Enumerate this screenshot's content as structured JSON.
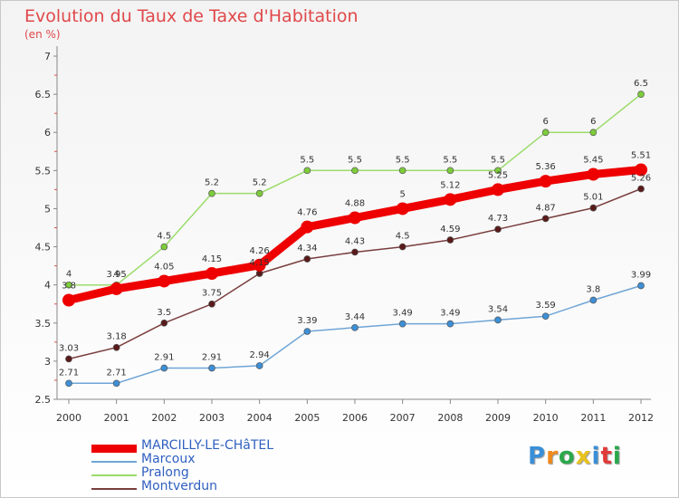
{
  "chart_data": {
    "type": "line",
    "title": "Evolution du Taux de Taxe d'Habitation",
    "subtitle": "(en %)",
    "x": [
      "2000",
      "2001",
      "2002",
      "2003",
      "2004",
      "2005",
      "2006",
      "2007",
      "2008",
      "2009",
      "2010",
      "2011",
      "2012"
    ],
    "ylim": [
      2.5,
      7
    ],
    "yticks": [
      "2.5",
      "3",
      "3.5",
      "4",
      "4.5",
      "5",
      "5.5",
      "6",
      "6.5",
      "7"
    ],
    "grid": false,
    "legend_position": "bottom-left",
    "series": [
      {
        "name": "MARCILLY-LE-CHâTEL",
        "color": "#ee0000",
        "emphasis": true,
        "values": [
          3.8,
          3.95,
          4.05,
          4.15,
          4.26,
          4.76,
          4.88,
          5,
          5.12,
          5.25,
          5.36,
          5.45,
          5.51
        ],
        "labels": [
          "3.8",
          "3.95",
          "4.05",
          "4.15",
          "4.26",
          "4.76",
          "4.88",
          "5",
          "5.12",
          "5.25",
          "5.36",
          "5.45",
          "5.51"
        ]
      },
      {
        "name": "Marcoux",
        "color": "#6fa5d6",
        "point_color": "#3d8fd6",
        "values": [
          2.71,
          2.71,
          2.91,
          2.91,
          2.94,
          3.39,
          3.44,
          3.49,
          3.49,
          3.54,
          3.59,
          3.8,
          3.99
        ],
        "labels": [
          "2.71",
          "2.71",
          "2.91",
          "2.91",
          "2.94",
          "3.39",
          "3.44",
          "3.49",
          "3.49",
          "3.54",
          "3.59",
          "3.8",
          "3.99"
        ]
      },
      {
        "name": "Pralong",
        "color": "#9bdc6a",
        "point_color": "#7dcc3c",
        "values": [
          4,
          4,
          4.5,
          5.2,
          5.2,
          5.5,
          5.5,
          5.5,
          5.5,
          5.5,
          6,
          6,
          6.5
        ],
        "labels": [
          "4",
          "4",
          "4.5",
          "5.2",
          "5.2",
          "5.5",
          "5.5",
          "5.5",
          "5.5",
          "5.5",
          "6",
          "6",
          "6.5"
        ]
      },
      {
        "name": "Montverdun",
        "color": "#7a3e3e",
        "point_color": "#5a1a1a",
        "values": [
          3.03,
          3.18,
          3.5,
          3.75,
          4.15,
          4.34,
          4.43,
          4.5,
          4.59,
          4.73,
          4.87,
          5.01,
          5.26
        ],
        "labels": [
          "3.03",
          "3.18",
          "3.5",
          "3.75",
          "4.15",
          "4.34",
          "4.43",
          "4.5",
          "4.59",
          "4.73",
          "4.87",
          "5.01",
          "5.26"
        ]
      }
    ]
  },
  "legend": {
    "items": [
      {
        "label": "MARCILLY-LE-CHâTEL",
        "color": "#ee0000"
      },
      {
        "label": "Marcoux",
        "color": "#6fa5d6"
      },
      {
        "label": "Pralong",
        "color": "#9bdc6a"
      },
      {
        "label": "Montverdun",
        "color": "#7a3e3e"
      }
    ]
  },
  "logo": {
    "letters": [
      "P",
      "r",
      "o",
      "x",
      "i",
      "t",
      "i"
    ],
    "colors": [
      "#3a8fd8",
      "#f08a1c",
      "#2aa84a",
      "#e8c21c",
      "#3a8fd8",
      "#e23a3a",
      "#2aa84a"
    ]
  }
}
